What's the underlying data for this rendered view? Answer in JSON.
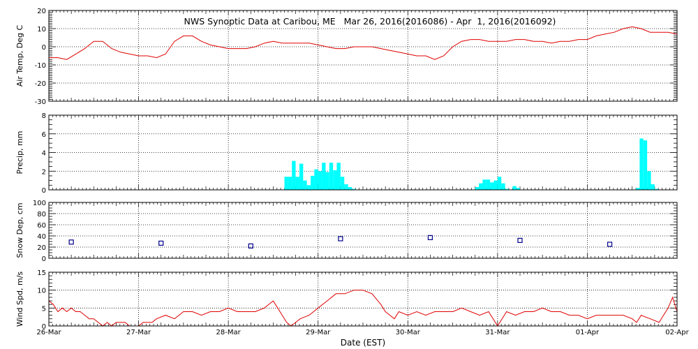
{
  "title": "NWS Synoptic Data at Caribou, ME   Mar 26, 2016(2016086) - Apr  1, 2016(2016092)",
  "xlabel": "Date (EST)",
  "x_ticks": [
    "26-Mar",
    "27-Mar",
    "28-Mar",
    "29-Mar",
    "30-Mar",
    "31-Mar",
    "01-Apr",
    "02-Apr"
  ],
  "colors": {
    "temp": "#e00000",
    "precip": "#00ffff",
    "snow": "#00008b",
    "wind": "#e00000"
  },
  "chart_data": [
    {
      "type": "line",
      "ylabel": "Air Temp, Deg C",
      "ylim": [
        -30,
        20
      ],
      "yticks": [
        -30,
        -20,
        -10,
        0,
        10,
        20
      ],
      "xlim": [
        0,
        7
      ],
      "grid": true,
      "series": [
        {
          "x": [
            0,
            0.1,
            0.2,
            0.3,
            0.4,
            0.5,
            0.6,
            0.7,
            0.8,
            0.9,
            1.0,
            1.1,
            1.2,
            1.3,
            1.4,
            1.5,
            1.6,
            1.7,
            1.8,
            1.9,
            2.0,
            2.1,
            2.2,
            2.3,
            2.4,
            2.5,
            2.6,
            2.7,
            2.8,
            2.9,
            3.0,
            3.1,
            3.2,
            3.3,
            3.4,
            3.5,
            3.6,
            3.7,
            3.8,
            3.9,
            4.0,
            4.1,
            4.2,
            4.3,
            4.4,
            4.5,
            4.6,
            4.7,
            4.8,
            4.9,
            5.0,
            5.1,
            5.2,
            5.3,
            5.4,
            5.5,
            5.6,
            5.7,
            5.8,
            5.9,
            6.0,
            6.1,
            6.2,
            6.3,
            6.4,
            6.5,
            6.6,
            6.7,
            6.8,
            6.9,
            7.0
          ],
          "y": [
            -6,
            -6,
            -7,
            -4,
            -1,
            3,
            3,
            -1,
            -3,
            -4,
            -5,
            -5,
            -6,
            -4,
            3,
            6,
            6,
            3,
            1,
            0,
            -1,
            -1,
            -1,
            0,
            2,
            3,
            2,
            2,
            2,
            2,
            1,
            0,
            -1,
            -1,
            0,
            0,
            0,
            -1,
            -2,
            -3,
            -4,
            -5,
            -5,
            -7,
            -5,
            0,
            3,
            4,
            4,
            3,
            3,
            3,
            4,
            4,
            3,
            3,
            2,
            3,
            3,
            4,
            4,
            6,
            7,
            8,
            10,
            11,
            10,
            8,
            8,
            8,
            7
          ]
        }
      ]
    },
    {
      "type": "bar",
      "ylabel": "Precip, mm",
      "ylim": [
        0,
        8
      ],
      "yticks": [
        0,
        2,
        4,
        6,
        8
      ],
      "xlim": [
        0,
        7
      ],
      "grid": true,
      "bar_width_days": 0.0417,
      "x": [
        2.625,
        2.667,
        2.708,
        2.75,
        2.792,
        2.833,
        2.875,
        2.917,
        2.958,
        3.0,
        3.042,
        3.083,
        3.125,
        3.167,
        3.208,
        3.25,
        3.292,
        3.333,
        3.375,
        4.75,
        4.792,
        4.833,
        4.875,
        4.917,
        4.958,
        5.0,
        5.042,
        5.083,
        5.167,
        5.208,
        6.542,
        6.583,
        6.625,
        6.667,
        6.708,
        6.75
      ],
      "values": [
        1.4,
        1.4,
        3.1,
        1.4,
        2.8,
        1.0,
        0.5,
        1.5,
        2.2,
        2.0,
        2.9,
        1.9,
        2.9,
        2.1,
        2.9,
        1.4,
        0.6,
        0.3,
        0.1,
        0.3,
        0.7,
        1.1,
        1.1,
        0.8,
        1.0,
        1.4,
        0.7,
        0.1,
        0.4,
        0.2,
        0.2,
        5.5,
        5.3,
        2.0,
        0.6,
        0.1
      ]
    },
    {
      "type": "scatter",
      "ylabel": "Snow Dep, cm",
      "ylim": [
        0,
        100
      ],
      "yticks": [
        0,
        20,
        40,
        60,
        80,
        100
      ],
      "xlim": [
        0,
        7
      ],
      "grid": true,
      "marker": "open-square",
      "x": [
        0.25,
        1.25,
        2.25,
        3.25,
        4.25,
        5.25,
        6.25
      ],
      "y": [
        29,
        27,
        22,
        35,
        37,
        32,
        25
      ]
    },
    {
      "type": "line",
      "ylabel": "Wind Spd, m/s",
      "ylim": [
        0,
        15
      ],
      "yticks": [
        0,
        5,
        10,
        15
      ],
      "xlim": [
        0,
        7
      ],
      "grid": true,
      "series": [
        {
          "x": [
            0,
            0.05,
            0.1,
            0.15,
            0.2,
            0.25,
            0.3,
            0.35,
            0.4,
            0.45,
            0.5,
            0.55,
            0.6,
            0.65,
            0.7,
            0.75,
            0.8,
            0.85,
            0.9,
            0.95,
            1.0,
            1.05,
            1.1,
            1.15,
            1.2,
            1.3,
            1.4,
            1.5,
            1.6,
            1.7,
            1.8,
            1.9,
            2.0,
            2.1,
            2.2,
            2.3,
            2.4,
            2.5,
            2.55,
            2.6,
            2.65,
            2.7,
            2.75,
            2.8,
            2.9,
            3.0,
            3.1,
            3.2,
            3.3,
            3.4,
            3.5,
            3.6,
            3.7,
            3.75,
            3.8,
            3.85,
            3.9,
            4.0,
            4.1,
            4.2,
            4.3,
            4.4,
            4.5,
            4.6,
            4.7,
            4.8,
            4.9,
            5.0,
            5.1,
            5.2,
            5.3,
            5.4,
            5.5,
            5.6,
            5.7,
            5.8,
            5.9,
            6.0,
            6.1,
            6.2,
            6.3,
            6.4,
            6.5,
            6.55,
            6.6,
            6.7,
            6.8,
            6.9,
            6.95,
            7.0
          ],
          "y": [
            7,
            6,
            4,
            5,
            4,
            5,
            4,
            4,
            3,
            2,
            2,
            1,
            0,
            1,
            0,
            1,
            1,
            1,
            0,
            0,
            0,
            1,
            1,
            1,
            2,
            3,
            2,
            4,
            4,
            3,
            4,
            4,
            5,
            4,
            4,
            4,
            5,
            7,
            5,
            3,
            1,
            0,
            1,
            2,
            3,
            5,
            7,
            9,
            9,
            10,
            10,
            9,
            6,
            4,
            3,
            2,
            4,
            3,
            4,
            3,
            4,
            4,
            4,
            5,
            4,
            3,
            4,
            0,
            4,
            3,
            4,
            4,
            5,
            4,
            4,
            3,
            3,
            2,
            3,
            3,
            3,
            3,
            2,
            1,
            3,
            2,
            1,
            5,
            8,
            4
          ]
        }
      ]
    }
  ]
}
